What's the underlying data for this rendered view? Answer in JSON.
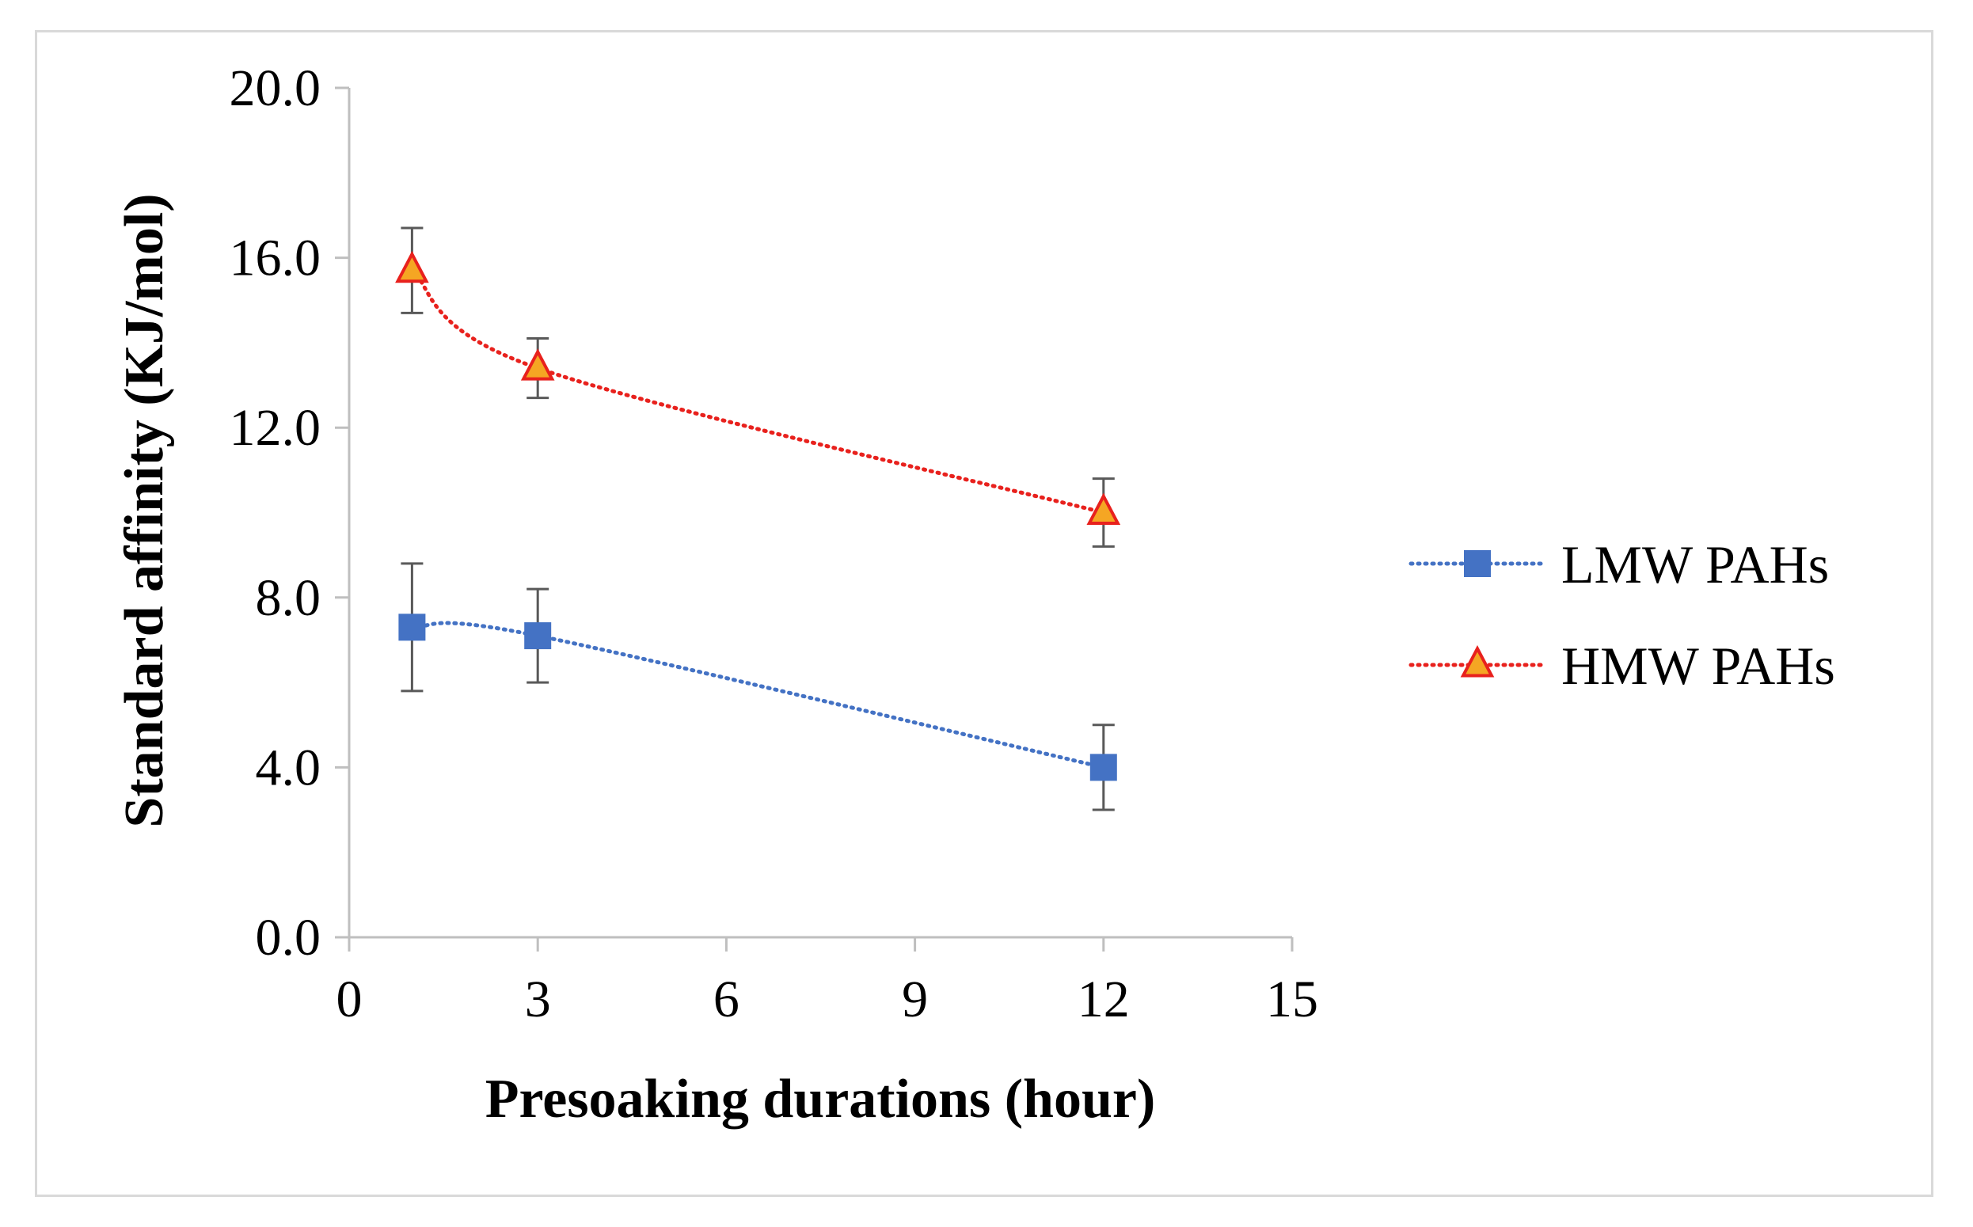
{
  "chart_data": {
    "type": "line",
    "xlabel": "Presoaking durations (hour)",
    "ylabel": "Standard affinity (KJ/mol)",
    "xlim": [
      0,
      15
    ],
    "ylim": [
      0,
      20
    ],
    "xticks": [
      0,
      3,
      6,
      9,
      12,
      15
    ],
    "yticks": [
      0,
      4,
      8,
      12,
      16,
      20
    ],
    "xtick_labels": [
      "0",
      "3",
      "6",
      "9",
      "12",
      "15"
    ],
    "ytick_labels": [
      "0.0",
      "4.0",
      "8.0",
      "12.0",
      "16.0",
      "20.0"
    ],
    "grid": false,
    "legend_position": "right",
    "series": [
      {
        "name": "LMW PAHs",
        "marker": "square",
        "color": "#4472c4",
        "line_style": "dotted",
        "x": [
          1,
          3,
          12
        ],
        "y": [
          7.3,
          7.1,
          4.0
        ],
        "error": [
          1.5,
          1.1,
          1.0
        ]
      },
      {
        "name": "HMW PAHs",
        "marker": "triangle",
        "color": "#e8211d",
        "marker_fill": "#f5a623",
        "line_style": "dotted",
        "x": [
          1,
          3,
          12
        ],
        "y": [
          15.7,
          13.4,
          10.0
        ],
        "error": [
          1.0,
          0.7,
          0.8
        ]
      }
    ]
  }
}
